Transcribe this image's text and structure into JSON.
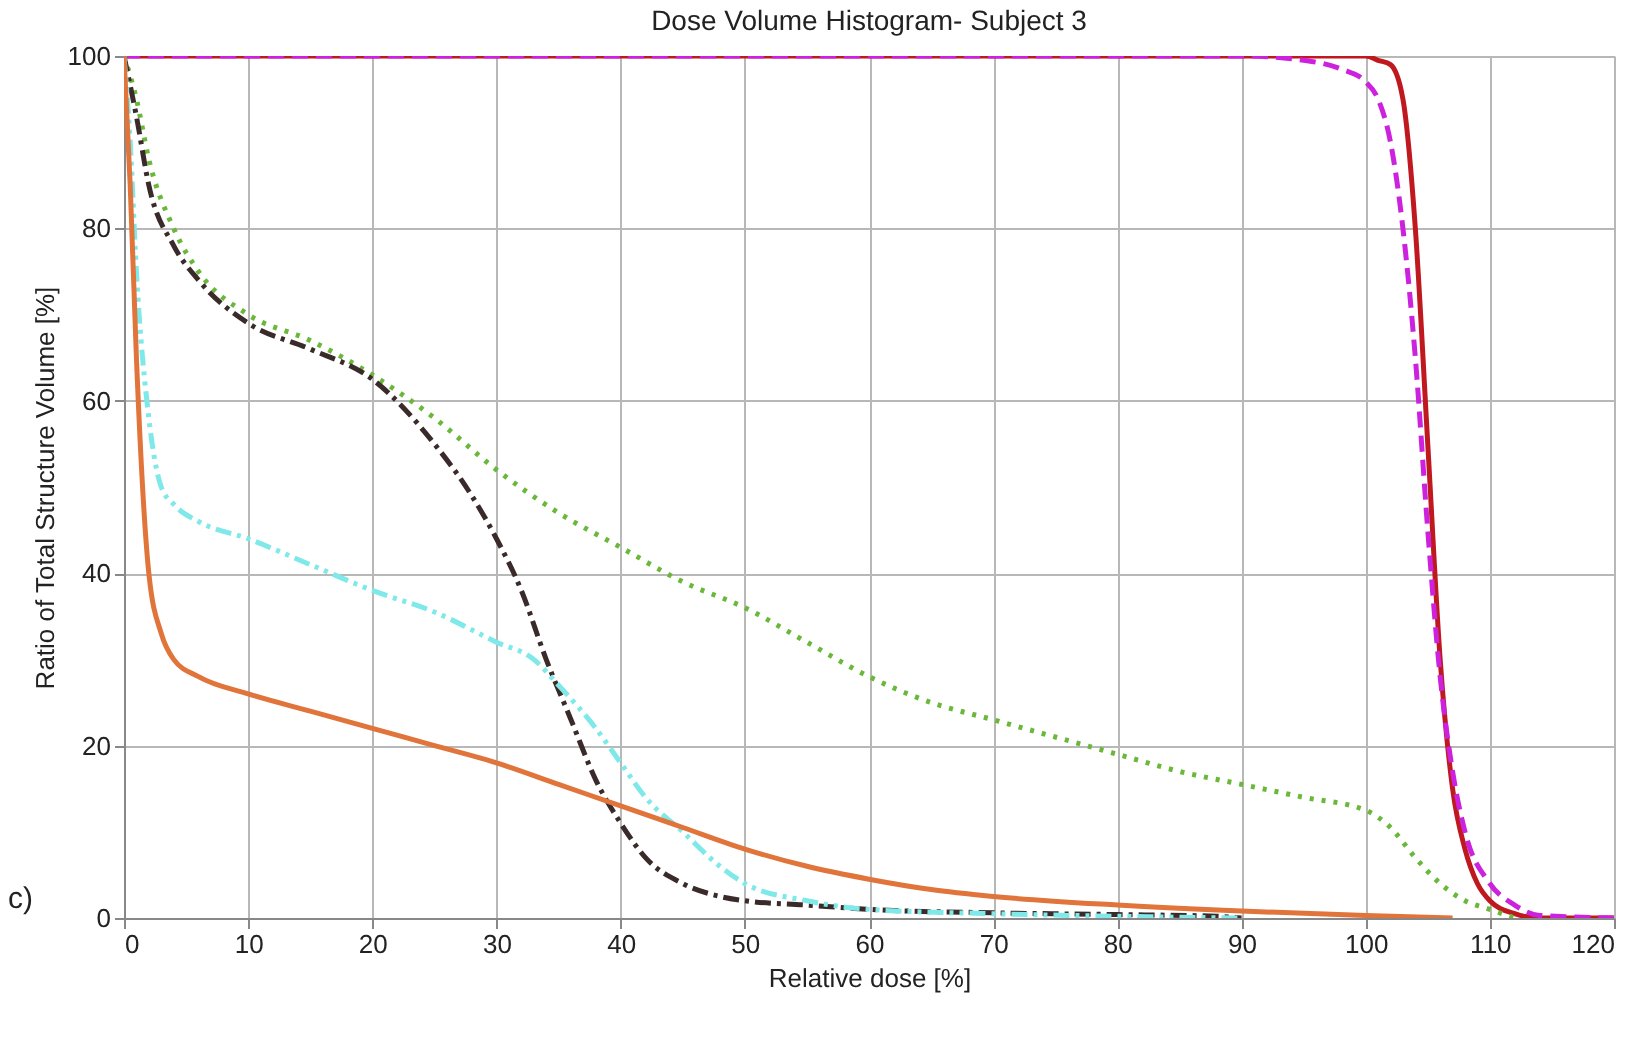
{
  "chart_data": {
    "type": "line",
    "title": "Dose Volume Histogram- Subject 3",
    "xlabel": "Relative dose [%]",
    "ylabel": "Ratio of Total Structure Volume [%]",
    "annotations": [
      "c)"
    ],
    "xlim": [
      0,
      120
    ],
    "ylim": [
      0,
      100
    ],
    "xticks": [
      0,
      10,
      20,
      30,
      40,
      50,
      60,
      70,
      80,
      90,
      100,
      110,
      120
    ],
    "yticks": [
      0,
      20,
      40,
      60,
      80,
      100
    ],
    "grid": true,
    "marker": "none",
    "series": [
      {
        "color": "#c0181f",
        "line_style": "solid",
        "x": [
          0,
          20,
          40,
          60,
          80,
          95,
          100,
          101,
          102,
          103,
          104,
          105,
          106,
          107,
          108,
          109,
          110,
          112,
          114,
          120
        ],
        "values": [
          100,
          100,
          100,
          100,
          100,
          100,
          100,
          99.5,
          99,
          95,
          80,
          55,
          30,
          15,
          8,
          4,
          2,
          0.5,
          0,
          0
        ]
      },
      {
        "color": "#cc22dd",
        "line_style": "dashed",
        "x": [
          0,
          20,
          40,
          60,
          80,
          90,
          95,
          98,
          100,
          101,
          102,
          103,
          104,
          105,
          106,
          107,
          108,
          110,
          112,
          114,
          120
        ],
        "values": [
          100,
          100,
          100,
          100,
          100,
          100,
          99.5,
          98.5,
          97,
          95,
          90,
          80,
          65,
          45,
          28,
          17,
          10,
          4,
          1.5,
          0.3,
          0
        ]
      },
      {
        "color": "#6ab83a",
        "line_style": "dotted",
        "x": [
          0,
          1,
          2,
          4,
          6,
          10,
          15,
          20,
          25,
          30,
          35,
          40,
          45,
          50,
          55,
          60,
          65,
          70,
          75,
          80,
          85,
          90,
          95,
          100,
          102,
          104,
          106,
          108,
          110,
          112
        ],
        "values": [
          100,
          95,
          88,
          80,
          75,
          70,
          67,
          63,
          58,
          52,
          47,
          43,
          39,
          36,
          32,
          28,
          25,
          23,
          21,
          19,
          17,
          15.5,
          14,
          12.5,
          10.5,
          7,
          4,
          2,
          1,
          0
        ]
      },
      {
        "color": "#3a2a2a",
        "line_style": "dashdot",
        "x": [
          0,
          1,
          2,
          4,
          6,
          10,
          15,
          20,
          25,
          28,
          30,
          32,
          34,
          36,
          38,
          40,
          42,
          45,
          48,
          50,
          55,
          60,
          70,
          80,
          88,
          90
        ],
        "values": [
          100,
          93,
          85,
          78,
          74,
          69,
          66,
          62.5,
          55,
          49,
          44,
          38,
          30,
          23,
          16,
          11,
          7,
          4,
          2.5,
          2,
          1.5,
          1,
          0.6,
          0.4,
          0.2,
          0
        ]
      },
      {
        "color": "#7fe8e8",
        "line_style": "dashdotdot",
        "x": [
          0,
          0.5,
          1,
          2,
          3,
          4,
          6,
          10,
          15,
          20,
          25,
          30,
          33,
          35,
          38,
          40,
          42,
          45,
          48,
          50,
          55,
          60,
          70,
          80,
          90
        ],
        "values": [
          100,
          90,
          75,
          58,
          50,
          48,
          46,
          44,
          41,
          38,
          35.5,
          32,
          30,
          27,
          22,
          18,
          14,
          10,
          6,
          4,
          2,
          1,
          0.5,
          0.2,
          0
        ]
      },
      {
        "color": "#e0743a",
        "line_style": "solid",
        "x": [
          0,
          0.5,
          1,
          2,
          3,
          4,
          6,
          10,
          15,
          20,
          25,
          30,
          35,
          40,
          45,
          50,
          55,
          60,
          65,
          70,
          80,
          90,
          100,
          107
        ],
        "values": [
          100,
          85,
          65,
          40,
          33,
          30,
          28,
          26,
          24,
          22,
          20,
          18,
          15.5,
          13,
          10.5,
          8,
          6,
          4.5,
          3.3,
          2.5,
          1.5,
          0.8,
          0.3,
          0
        ]
      }
    ]
  }
}
